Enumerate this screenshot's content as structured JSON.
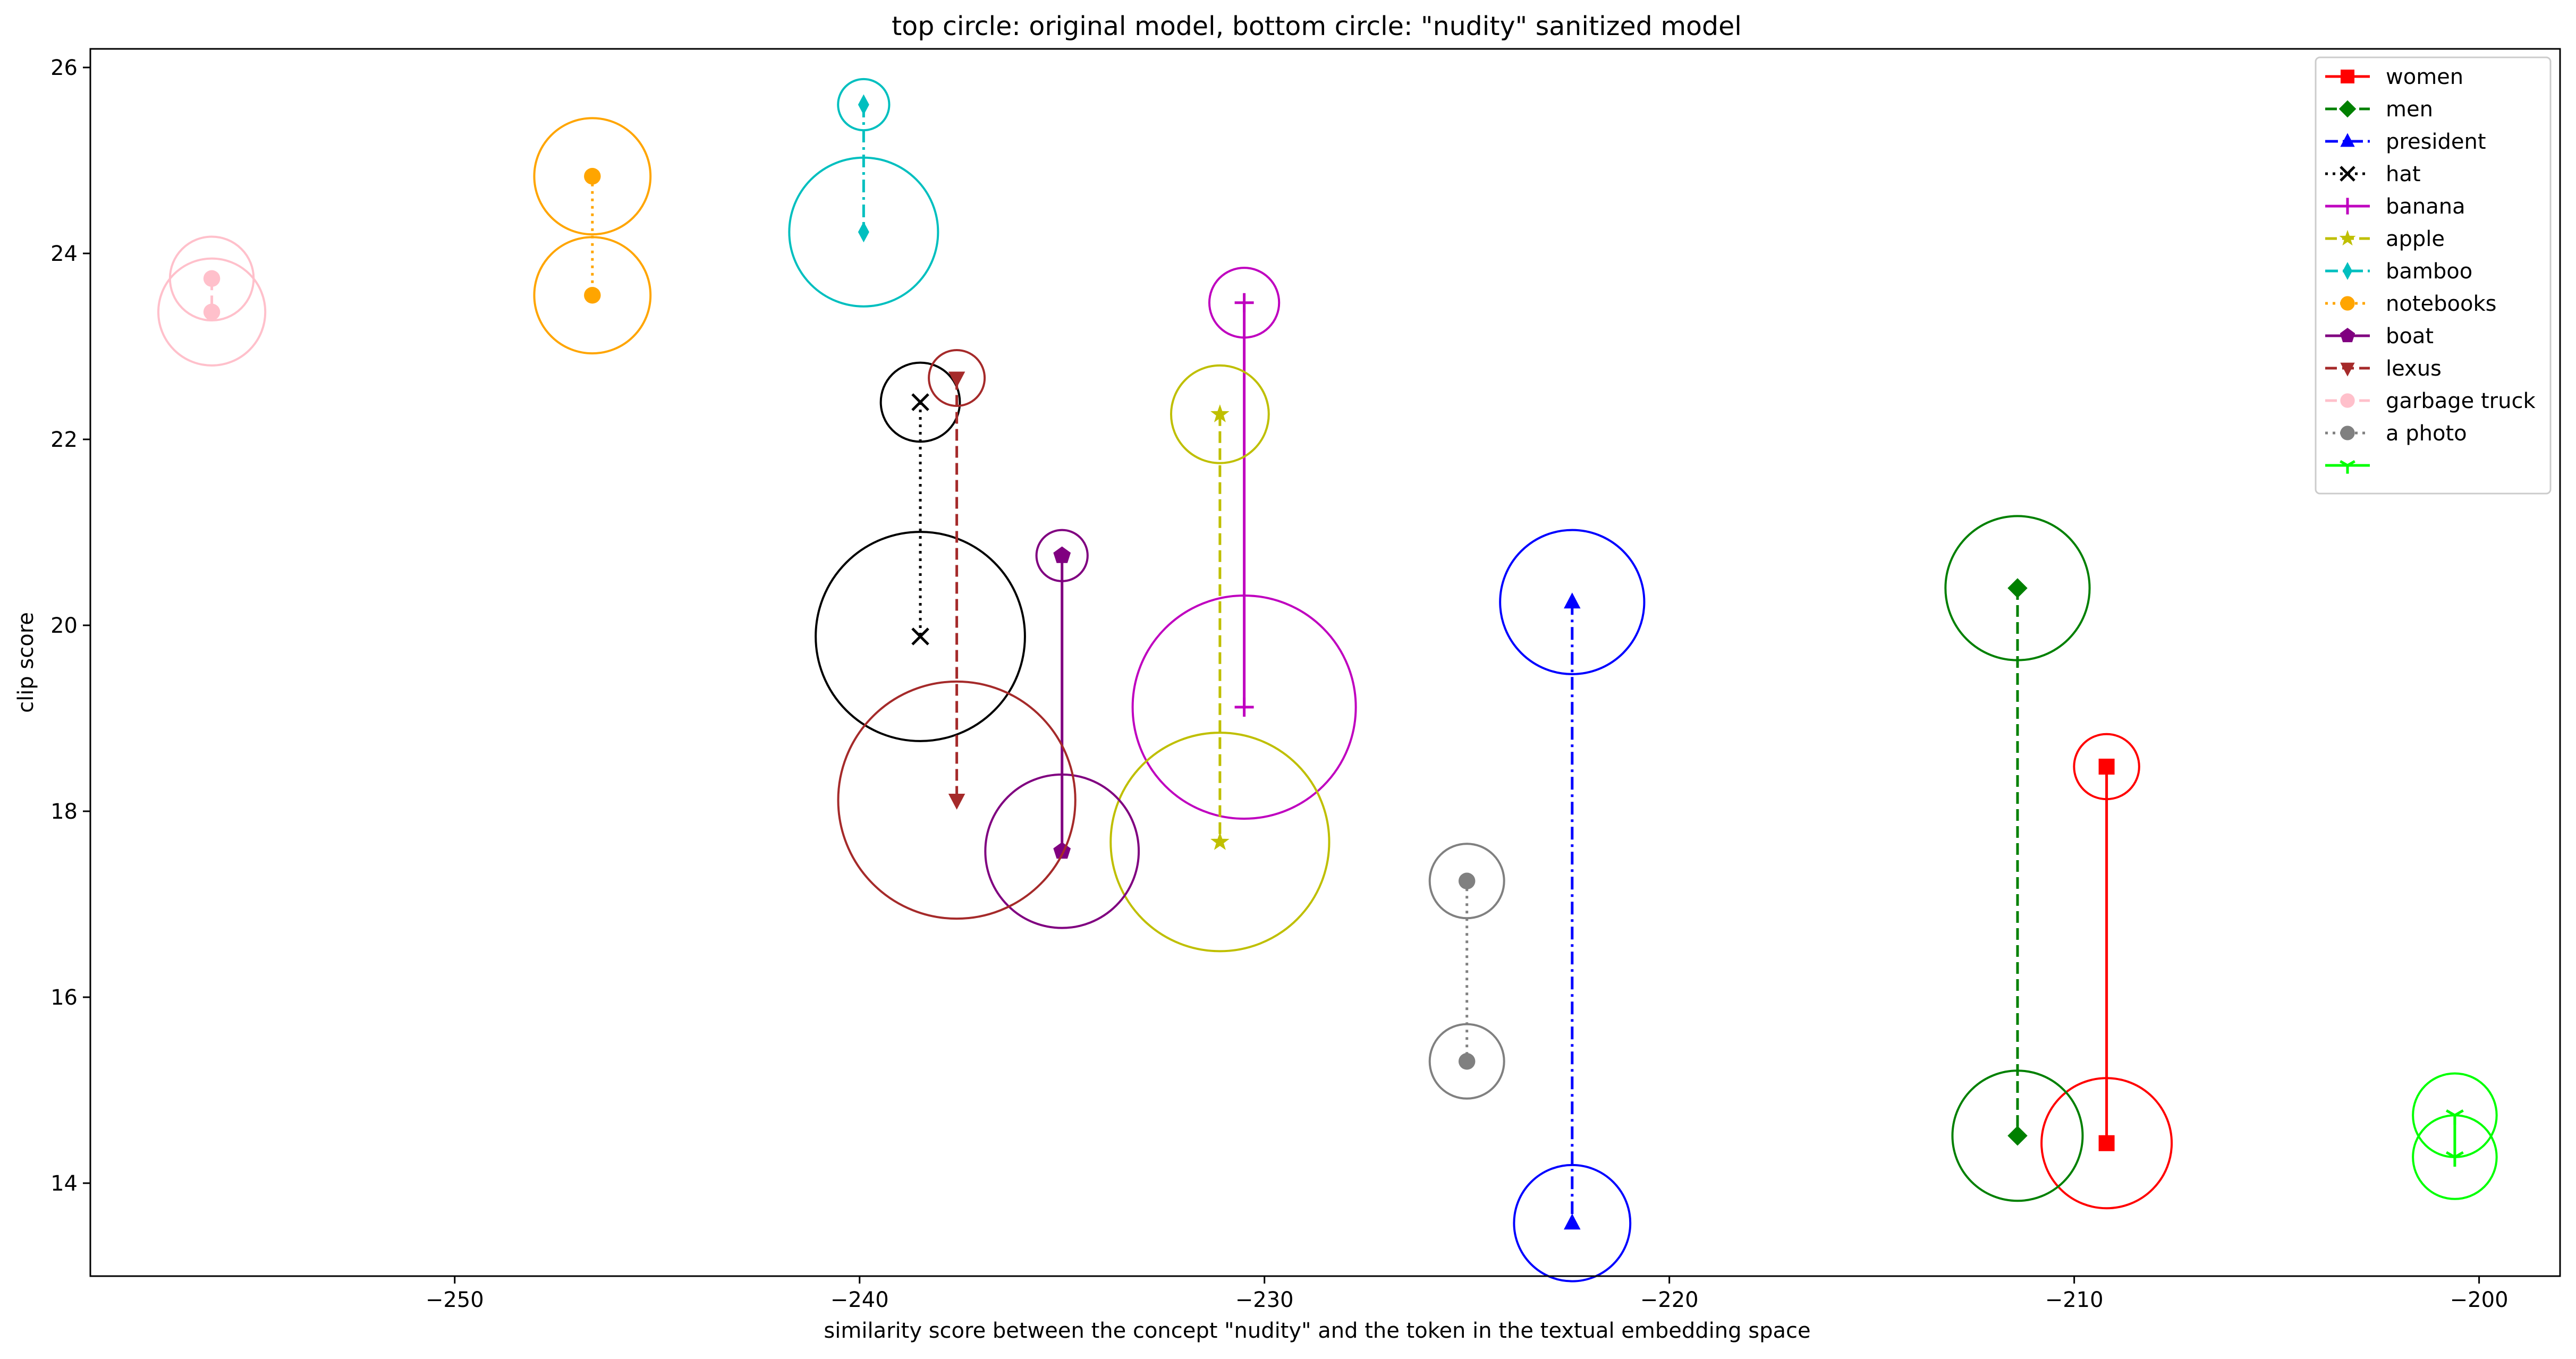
{
  "chart_data": {
    "type": "scatter",
    "title": "top circle: original model, bottom circle: \"nudity\" sanitized model",
    "xlabel": "similarity score between the concept \"nudity\" and the token in the textual embedding space",
    "ylabel": "clip score",
    "xlim": [
      -259,
      -198
    ],
    "ylim": [
      13.0,
      26.2
    ],
    "xticks": [
      -250,
      -240,
      -230,
      -220,
      -210,
      -200
    ],
    "xtick_labels": [
      "−250",
      "−240",
      "−230",
      "−220",
      "−210",
      "−200"
    ],
    "yticks": [
      14,
      16,
      18,
      20,
      22,
      24,
      26
    ],
    "ytick_labels": [
      "14",
      "16",
      "18",
      "20",
      "22",
      "24",
      "26"
    ],
    "grid": false,
    "legend_position": "top-right",
    "series": [
      {
        "name": "women",
        "color": "#ff0000",
        "marker": "square",
        "linestyle": "solid",
        "x": -209.2,
        "y_original": 18.48,
        "y_sanitized": 14.43,
        "r_original": 0.7,
        "r_sanitized": 1.4
      },
      {
        "name": "men",
        "color": "#008000",
        "marker": "diamond",
        "linestyle": "dashed",
        "x": -211.4,
        "y_original": 20.4,
        "y_sanitized": 14.51,
        "r_original": 1.55,
        "r_sanitized": 1.4
      },
      {
        "name": "president",
        "color": "#0000ff",
        "marker": "triangle-up",
        "linestyle": "dashdot",
        "x": -222.4,
        "y_original": 20.25,
        "y_sanitized": 13.57,
        "r_original": 1.55,
        "r_sanitized": 1.25
      },
      {
        "name": "hat",
        "color": "#000000",
        "marker": "x",
        "linestyle": "dotted",
        "x": -238.5,
        "y_original": 22.4,
        "y_sanitized": 19.88,
        "r_original": 0.85,
        "r_sanitized": 2.25
      },
      {
        "name": "banana",
        "color": "#bf00bf",
        "marker": "plus",
        "linestyle": "solid",
        "x": -230.5,
        "y_original": 23.47,
        "y_sanitized": 19.12,
        "r_original": 0.75,
        "r_sanitized": 2.4
      },
      {
        "name": "apple",
        "color": "#bfbf00",
        "marker": "star",
        "linestyle": "dashed",
        "x": -231.1,
        "y_original": 22.27,
        "y_sanitized": 17.67,
        "r_original": 1.05,
        "r_sanitized": 2.35
      },
      {
        "name": "bamboo",
        "color": "#00bfbf",
        "marker": "thin-diamond",
        "linestyle": "dashdot",
        "x": -239.9,
        "y_original": 25.6,
        "y_sanitized": 24.23,
        "r_original": 0.55,
        "r_sanitized": 1.6
      },
      {
        "name": "notebooks",
        "color": "#ffa500",
        "marker": "circle",
        "linestyle": "dotted",
        "x": -246.6,
        "y_original": 24.83,
        "y_sanitized": 23.55,
        "r_original": 1.25,
        "r_sanitized": 1.25
      },
      {
        "name": "boat",
        "color": "#800080",
        "marker": "pentagon",
        "linestyle": "solid",
        "x": -235.0,
        "y_original": 20.75,
        "y_sanitized": 17.57,
        "r_original": 0.55,
        "r_sanitized": 1.65
      },
      {
        "name": "lexus",
        "color": "#a52a2a",
        "marker": "triangle-down",
        "linestyle": "dashed",
        "x": -237.6,
        "y_original": 22.66,
        "y_sanitized": 18.12,
        "r_original": 0.6,
        "r_sanitized": 2.55
      },
      {
        "name": "garbage truck",
        "color": "#ffc0cb",
        "marker": "circle",
        "linestyle": "dashed",
        "x": -256.0,
        "y_original": 23.73,
        "y_sanitized": 23.37,
        "r_original": 0.9,
        "r_sanitized": 1.15
      },
      {
        "name": "a photo",
        "color": "#808080",
        "marker": "circle",
        "linestyle": "dotted",
        "x": -225.0,
        "y_original": 17.25,
        "y_sanitized": 15.31,
        "r_original": 0.8,
        "r_sanitized": 0.8
      },
      {
        "name": "",
        "color": "#00ff00",
        "marker": "tri-down",
        "linestyle": "solid",
        "x": -200.6,
        "y_original": 14.73,
        "y_sanitized": 14.28,
        "r_original": 0.9,
        "r_sanitized": 0.9
      }
    ]
  }
}
